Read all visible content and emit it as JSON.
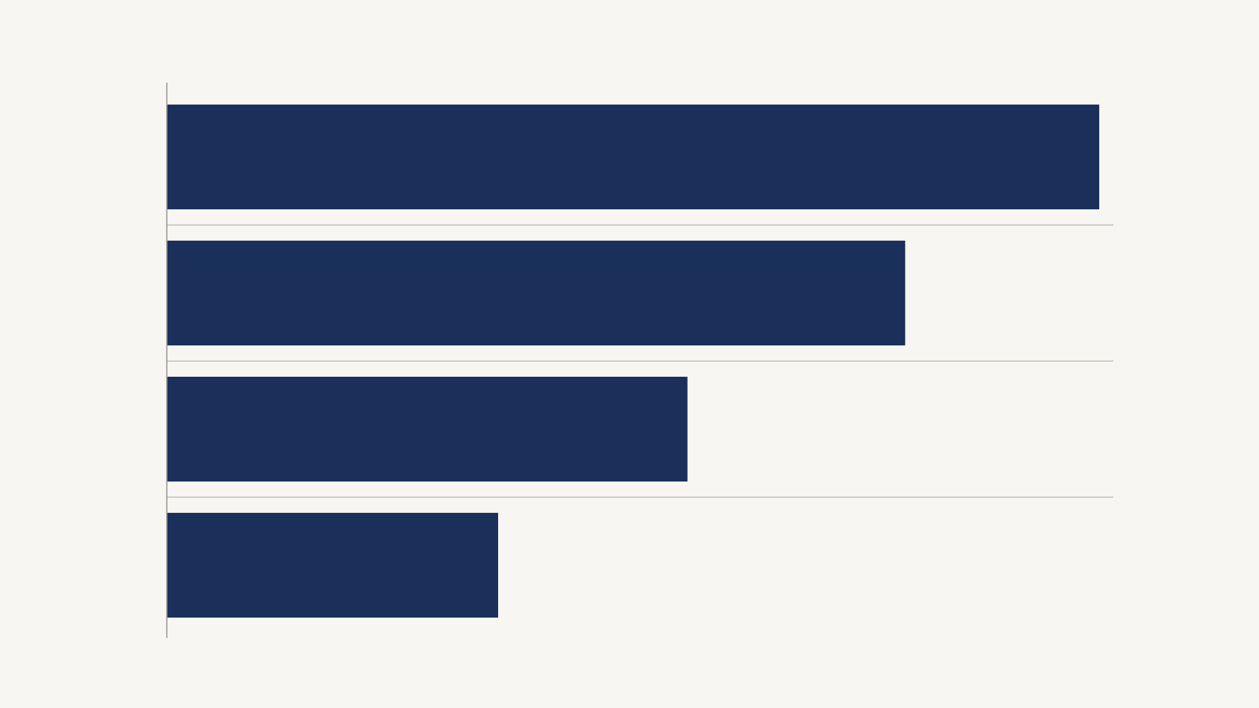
{
  "chart_data": {
    "type": "bar",
    "orientation": "horizontal",
    "categories": [
      null,
      null,
      null,
      null
    ],
    "values": [
      98.5,
      78,
      55,
      35
    ],
    "color": "#1a2f5a",
    "xlim": [
      0,
      100
    ]
  }
}
